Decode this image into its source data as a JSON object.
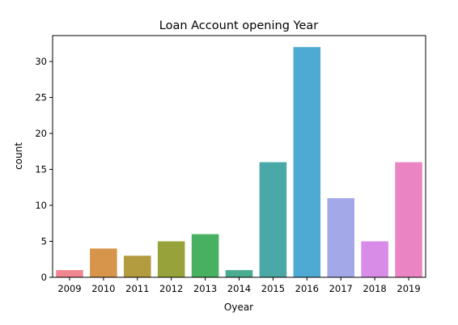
{
  "chart_data": {
    "type": "bar",
    "title": "Loan Account opening Year",
    "xlabel": "Oyear",
    "ylabel": "count",
    "categories": [
      "2009",
      "2010",
      "2011",
      "2012",
      "2013",
      "2014",
      "2015",
      "2016",
      "2017",
      "2018",
      "2019"
    ],
    "values": [
      1,
      4,
      3,
      5,
      6,
      1,
      16,
      32,
      11,
      5,
      16
    ],
    "colors": [
      "#f08790",
      "#d6954a",
      "#b39b40",
      "#97a33a",
      "#48b061",
      "#4aac91",
      "#4aa9a7",
      "#4ea9d3",
      "#a3a8e8",
      "#d98ce7",
      "#eb84c3"
    ],
    "ylim": [
      0,
      33.6
    ],
    "yticks": [
      0,
      5,
      10,
      15,
      20,
      25,
      30
    ],
    "grid": false,
    "legend": "none"
  }
}
